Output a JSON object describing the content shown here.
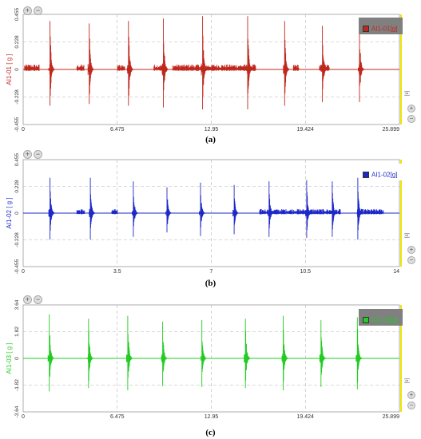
{
  "chart_data": [
    {
      "type": "line",
      "ylabel": "AI1-01 [ g ]",
      "legend": "AI1-01[g]",
      "color": "#c0281e",
      "legend_bg": "#808080",
      "legend_text_color": "#c0281e",
      "xlim": [
        0,
        25.899
      ],
      "ylim": [
        -0.455,
        0.455
      ],
      "xticks": [
        "0",
        "6.475",
        "12.95",
        "19.424",
        "25.899"
      ],
      "yticks": [
        "0.455",
        "0.228",
        "0",
        "-0.228",
        "-0.455"
      ],
      "x_unit": "[s]",
      "grid": true,
      "legend_position": "top-right",
      "impacts": [
        {
          "t": 1.85,
          "a": 0.4
        },
        {
          "t": 4.55,
          "a": 0.38
        },
        {
          "t": 7.25,
          "a": 0.4
        },
        {
          "t": 9.65,
          "a": 0.42
        },
        {
          "t": 12.35,
          "a": 0.44
        },
        {
          "t": 15.45,
          "a": 0.44
        },
        {
          "t": 18.0,
          "a": 0.4
        },
        {
          "t": 20.6,
          "a": 0.36
        },
        {
          "t": 23.15,
          "a": 0.36
        }
      ],
      "noise_bands": [
        [
          0.1,
          1.1
        ],
        [
          3.7,
          4.2
        ],
        [
          6.5,
          7.0
        ],
        [
          9.0,
          9.6
        ],
        [
          10.3,
          16.0
        ],
        [
          18.6,
          19.0
        ],
        [
          20.4,
          21.1
        ]
      ],
      "noise_level": 0.03
    },
    {
      "type": "line",
      "ylabel": "AI1-02 [ g ]",
      "legend": "AI1-02[g]",
      "color": "#1e28c8",
      "legend_bg": "#ffffff",
      "legend_text_color": "#1e28c8",
      "xlim": [
        0,
        14
      ],
      "ylim": [
        -0.455,
        0.455
      ],
      "xticks": [
        "0",
        "3.5",
        "7",
        "10.5",
        "14"
      ],
      "yticks": [
        "0.455",
        "0.228",
        "0",
        "-0.228",
        "-0.455"
      ],
      "x_unit": "[s]",
      "grid": true,
      "legend_position": "top-right",
      "impacts": [
        {
          "t": 1.0,
          "a": 0.3
        },
        {
          "t": 2.5,
          "a": 0.3
        },
        {
          "t": 4.1,
          "a": 0.27
        },
        {
          "t": 5.35,
          "a": 0.22
        },
        {
          "t": 6.6,
          "a": 0.26
        },
        {
          "t": 7.85,
          "a": 0.24
        },
        {
          "t": 9.15,
          "a": 0.27
        },
        {
          "t": 10.55,
          "a": 0.28
        },
        {
          "t": 11.5,
          "a": 0.27
        },
        {
          "t": 12.45,
          "a": 0.3
        }
      ],
      "noise_bands": [
        [
          2.0,
          2.3
        ],
        [
          3.3,
          3.5
        ],
        [
          8.8,
          11.8
        ],
        [
          12.5,
          13.4
        ]
      ],
      "noise_level": 0.025
    },
    {
      "type": "line",
      "ylabel": "AI1-03 [ g ]",
      "legend": "AI1-03[g]",
      "color": "#22cc22",
      "legend_bg": "#808080",
      "legend_text_color": "#22cc22",
      "xlim": [
        0,
        25.899
      ],
      "ylim": [
        -3.64,
        3.64
      ],
      "xticks": [
        "0",
        "6.475",
        "12.95",
        "19.424",
        "25.899"
      ],
      "yticks": [
        "3.64",
        "1.82",
        "0",
        "-1.82",
        "-3.64"
      ],
      "x_unit": "[s]",
      "grid": true,
      "legend_position": "top-right",
      "impacts": [
        {
          "t": 1.8,
          "a": 3.0
        },
        {
          "t": 4.5,
          "a": 2.7
        },
        {
          "t": 7.2,
          "a": 2.9
        },
        {
          "t": 9.6,
          "a": 2.5
        },
        {
          "t": 12.3,
          "a": 2.6
        },
        {
          "t": 15.3,
          "a": 2.7
        },
        {
          "t": 17.9,
          "a": 2.9
        },
        {
          "t": 20.5,
          "a": 2.6
        },
        {
          "t": 23.0,
          "a": 2.8
        }
      ],
      "noise_bands": [],
      "noise_level": 0.08
    }
  ],
  "captions": [
    "(a)",
    "(b)",
    "(c)"
  ]
}
